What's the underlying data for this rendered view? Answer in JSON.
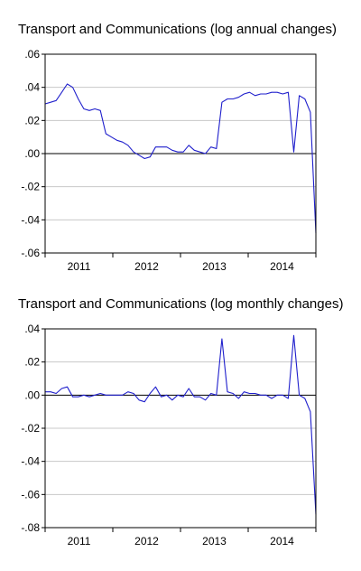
{
  "chart_data": [
    {
      "type": "line",
      "title": "Transport and Communications (log annual changes)",
      "xlabel": "",
      "ylabel": "",
      "x_tick_labels": [
        "2011",
        "2012",
        "2013",
        "2014"
      ],
      "y_tick_labels": [
        ".06",
        ".04",
        ".02",
        ".00",
        "-.02",
        "-.04",
        "-.06"
      ],
      "ylim": [
        -0.06,
        0.06
      ],
      "zero_line": true,
      "grid": true,
      "line_color": "#1f1fcc",
      "series": [
        {
          "values": [
            0.03,
            0.031,
            0.032,
            0.037,
            0.042,
            0.04,
            0.033,
            0.027,
            0.026,
            0.027,
            0.026,
            0.012,
            0.01,
            0.008,
            0.007,
            0.005,
            0.001,
            -0.001,
            -0.003,
            -0.002,
            0.004,
            0.004,
            0.004,
            0.002,
            0.001,
            0.001,
            0.005,
            0.002,
            0.001,
            0.0,
            0.004,
            0.003,
            0.031,
            0.033,
            0.033,
            0.034,
            0.036,
            0.037,
            0.035,
            0.036,
            0.036,
            0.037,
            0.037,
            0.036,
            0.037,
            0.001,
            0.035,
            0.033,
            0.025,
            -0.048
          ]
        }
      ]
    },
    {
      "type": "line",
      "title": "Transport and Communications (log monthly changes)",
      "xlabel": "",
      "ylabel": "",
      "x_tick_labels": [
        "2011",
        "2012",
        "2013",
        "2014"
      ],
      "y_tick_labels": [
        ".04",
        ".02",
        ".00",
        "-.02",
        "-.04",
        "-.06",
        "-.08"
      ],
      "ylim": [
        -0.08,
        0.04
      ],
      "zero_line": true,
      "grid": true,
      "line_color": "#1f1fcc",
      "series": [
        {
          "values": [
            0.002,
            0.002,
            0.001,
            0.004,
            0.005,
            -0.001,
            -0.001,
            0.0,
            -0.001,
            0.0,
            0.001,
            0.0,
            0.0,
            0.0,
            0.0,
            0.002,
            0.001,
            -0.003,
            -0.004,
            0.001,
            0.005,
            -0.001,
            0.0,
            -0.003,
            0.0,
            -0.001,
            0.004,
            -0.001,
            -0.001,
            -0.003,
            0.001,
            0.0,
            0.034,
            0.002,
            0.001,
            -0.002,
            0.002,
            0.001,
            0.001,
            0.0,
            0.0,
            -0.002,
            0.0,
            0.0,
            -0.002,
            0.036,
            0.0,
            -0.002,
            -0.01,
            -0.072
          ]
        }
      ]
    }
  ]
}
